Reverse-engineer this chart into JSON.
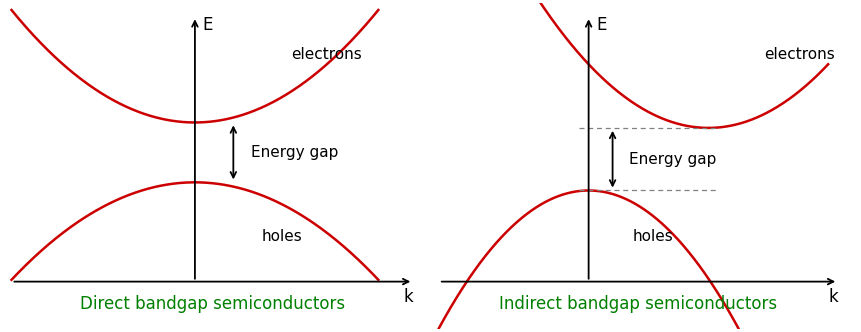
{
  "fig_width": 8.61,
  "fig_height": 3.32,
  "dpi": 100,
  "background_color": "#ffffff",
  "curve_color": "#cc0000",
  "curve_linewidth": 1.8,
  "axis_color": "#000000",
  "arrow_color": "#000000",
  "text_color": "#000000",
  "label_color": "#008000",
  "direct_title": "Direct bandgap semiconductors",
  "indirect_title": "Indirect bandgap semiconductors",
  "electrons_label": "electrons",
  "holes_label": "holes",
  "energy_gap_label": "Energy gap",
  "e_axis_label": "E",
  "k_axis_label": "k",
  "title_fontsize": 12,
  "label_fontsize": 11,
  "axis_label_fontsize": 12,
  "direct_xlim": [
    -1.1,
    1.3
  ],
  "direct_ylim": [
    -1.3,
    1.1
  ],
  "indirect_xlim": [
    -0.8,
    1.3
  ],
  "indirect_ylim": [
    -1.3,
    1.1
  ]
}
